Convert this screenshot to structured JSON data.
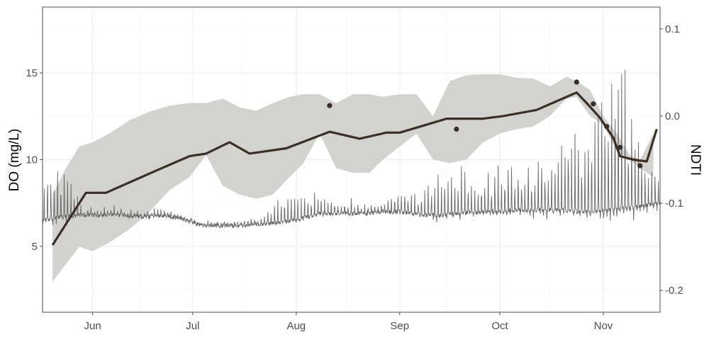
{
  "chart_data": {
    "type": "line",
    "title": "",
    "xlabel": "",
    "ylabel": "DO (mg/L)",
    "y2label": "NDTI",
    "x_ticks": [
      "Jun",
      "Jul",
      "Aug",
      "Sep",
      "Oct",
      "Nov"
    ],
    "y_ticks": [
      "5",
      "10",
      "15"
    ],
    "y2_ticks": [
      "0.1",
      "0.0",
      "-0.1",
      "-0.2"
    ],
    "xlim": [
      "2019-05-17",
      "2019-11-18"
    ],
    "ylim": [
      1.2,
      18.8
    ],
    "y2lim": [
      -0.225,
      0.125
    ],
    "grid": true,
    "colors": {
      "ribbon": "#d4d2ce",
      "ndti_line": "#3a2e26",
      "do_line": "#666666",
      "grid": "#ebebeb",
      "axis": "#4d4d4d"
    },
    "series": [
      {
        "type": "ribbon",
        "axis": "y2",
        "x": [
          "2019-05-20",
          "2019-05-24",
          "2019-05-28",
          "2019-06-01",
          "2019-06-06",
          "2019-06-12",
          "2019-06-18",
          "2019-06-24",
          "2019-06-30",
          "2019-07-05",
          "2019-07-10",
          "2019-07-15",
          "2019-07-20",
          "2019-07-25",
          "2019-07-30",
          "2019-08-03",
          "2019-08-08",
          "2019-08-13",
          "2019-08-18",
          "2019-08-23",
          "2019-08-27",
          "2019-09-01",
          "2019-09-06",
          "2019-09-11",
          "2019-09-16",
          "2019-09-21",
          "2019-09-26",
          "2019-10-01",
          "2019-10-06",
          "2019-10-11",
          "2019-10-16",
          "2019-10-21",
          "2019-10-24",
          "2019-10-28",
          "2019-11-01",
          "2019-11-05",
          "2019-11-09",
          "2019-11-12",
          "2019-11-16"
        ],
        "upper": [
          -0.09,
          -0.06,
          -0.035,
          -0.03,
          -0.02,
          -0.005,
          0.005,
          0.012,
          0.015,
          0.015,
          0.02,
          0.01,
          0.006,
          0.015,
          0.022,
          0.025,
          0.025,
          0.015,
          0.025,
          0.025,
          0.022,
          0.025,
          0.025,
          0.0,
          0.04,
          0.047,
          0.048,
          0.048,
          0.044,
          0.043,
          0.034,
          0.045,
          0.04,
          0.03,
          0.0,
          -0.02,
          -0.045,
          -0.05,
          -0.02
        ],
        "lower": [
          -0.19,
          -0.17,
          -0.15,
          -0.155,
          -0.145,
          -0.13,
          -0.11,
          -0.085,
          -0.07,
          -0.045,
          -0.08,
          -0.09,
          -0.095,
          -0.09,
          -0.07,
          -0.055,
          -0.02,
          -0.06,
          -0.065,
          -0.065,
          -0.05,
          -0.035,
          -0.02,
          -0.05,
          -0.054,
          -0.05,
          -0.03,
          -0.02,
          -0.015,
          -0.012,
          0.0,
          0.02,
          0.022,
          0.0,
          -0.01,
          -0.04,
          -0.05,
          -0.06,
          -0.07
        ]
      },
      {
        "type": "line",
        "axis": "y2",
        "x": [
          "2019-05-20",
          "2019-05-30",
          "2019-06-05",
          "2019-06-18",
          "2019-06-30",
          "2019-07-05",
          "2019-07-12",
          "2019-07-18",
          "2019-07-29",
          "2019-08-11",
          "2019-08-20",
          "2019-08-28",
          "2019-09-01",
          "2019-09-09",
          "2019-09-15",
          "2019-09-20",
          "2019-09-26",
          "2019-10-02",
          "2019-10-12",
          "2019-10-18",
          "2019-10-24",
          "2019-10-27",
          "2019-10-31",
          "2019-11-04",
          "2019-11-06",
          "2019-11-10",
          "2019-11-14",
          "2019-11-17"
        ],
        "values": [
          -0.148,
          -0.088,
          -0.088,
          -0.066,
          -0.046,
          -0.043,
          -0.03,
          -0.043,
          -0.037,
          -0.018,
          -0.026,
          -0.019,
          -0.019,
          -0.01,
          -0.003,
          -0.003,
          -0.003,
          0.0,
          0.007,
          0.017,
          0.027,
          0.015,
          -0.002,
          -0.025,
          -0.046,
          -0.05,
          -0.052,
          -0.015
        ]
      },
      {
        "type": "points",
        "axis": "y2",
        "x": [
          "2019-08-11",
          "2019-09-18",
          "2019-10-24",
          "2019-10-29",
          "2019-11-02",
          "2019-11-06",
          "2019-11-12"
        ],
        "values": [
          0.012,
          -0.015,
          0.039,
          0.014,
          -0.012,
          -0.036,
          -0.057
        ]
      },
      {
        "type": "line",
        "name": "DO",
        "axis": "y",
        "x_start": "2019-05-17",
        "x_end": "2019-11-18",
        "baseline": [
          6.5,
          6.7,
          6.8,
          6.8,
          6.8,
          6.7,
          6.8,
          6.6,
          6.2,
          6.2,
          6.2,
          6.3,
          6.4,
          6.6,
          6.9,
          6.9,
          6.9,
          7.0,
          7.0,
          6.8,
          6.8,
          6.9,
          7.0,
          7.0,
          7.1,
          7.1,
          7.1,
          7.0,
          7.0,
          7.2,
          7.3,
          7.5
        ],
        "spike_amp": [
          2.5,
          3.0,
          0.6,
          0.4,
          0.5,
          0.3,
          0.4,
          0.2,
          0.2,
          0.2,
          0.3,
          0.3,
          1.6,
          1.2,
          0.9,
          0.7,
          0.6,
          0.4,
          1.2,
          1.5,
          1.9,
          2.4,
          1.9,
          2.5,
          2.4,
          2.8,
          3.2,
          4.2,
          6.0,
          8.0,
          3.2,
          1.5
        ]
      }
    ]
  }
}
